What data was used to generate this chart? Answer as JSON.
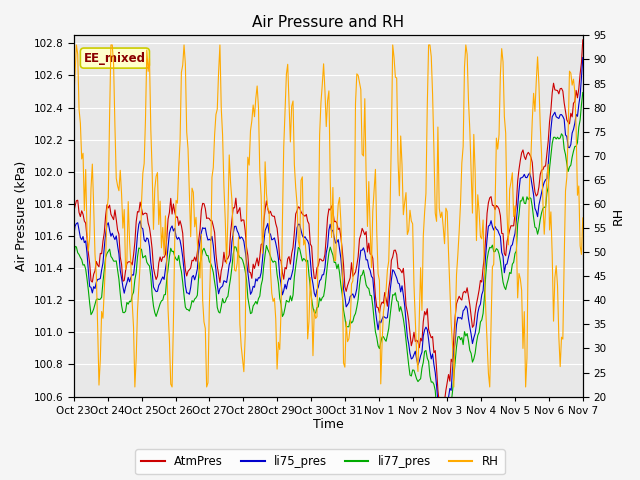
{
  "title": "Air Pressure and RH",
  "ylabel_left": "Air Pressure (kPa)",
  "ylabel_right": "RH",
  "xlabel": "Time",
  "ylim_left": [
    100.6,
    102.85
  ],
  "ylim_right": [
    20,
    95
  ],
  "yticks_left": [
    100.6,
    100.8,
    101.0,
    101.2,
    101.4,
    101.6,
    101.8,
    102.0,
    102.2,
    102.4,
    102.6,
    102.8
  ],
  "yticks_right": [
    20,
    25,
    30,
    35,
    40,
    45,
    50,
    55,
    60,
    65,
    70,
    75,
    80,
    85,
    90,
    95
  ],
  "fig_bg_color": "#f5f5f5",
  "plot_bg_color": "#e8e8e8",
  "colors": {
    "AtmPres": "#cc0000",
    "li75_pres": "#0000cc",
    "li77_pres": "#00aa00",
    "RH": "#ffaa00"
  },
  "legend_labels": [
    "AtmPres",
    "li75_pres",
    "li77_pres",
    "RH"
  ],
  "annotation_text": "EE_mixed",
  "annotation_color": "#8b0000",
  "annotation_bg": "#ffffcc",
  "annotation_border": "#cccc00",
  "date_labels": [
    "Oct 23",
    "Oct 24",
    "Oct 25",
    "Oct 26",
    "Oct 27",
    "Oct 28",
    "Oct 29",
    "Oct 30",
    "Oct 31",
    "Nov 1",
    "Nov 2",
    "Nov 3",
    "Nov 4",
    "Nov 5",
    "Nov 6",
    "Nov 7"
  ],
  "grid_color": "#ffffff",
  "title_fontsize": 11,
  "label_fontsize": 9,
  "tick_fontsize": 7.5,
  "linewidth": 0.8
}
